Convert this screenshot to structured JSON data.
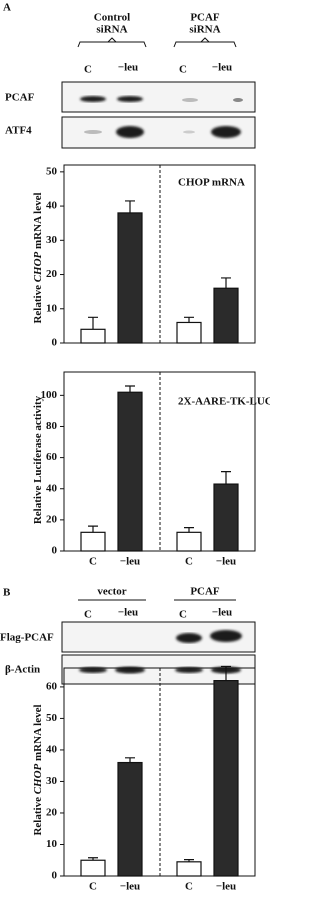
{
  "panel_a": {
    "label": "A",
    "groups": [
      [
        "Control",
        "siRNA"
      ],
      [
        "PCAF",
        "siRNA"
      ]
    ],
    "lanes": [
      "C",
      "−leu",
      "C",
      "−leu"
    ],
    "blots": [
      "PCAF",
      "ATF4"
    ]
  },
  "panel_b": {
    "label": "B",
    "groups": [
      "vector",
      "PCAF"
    ],
    "lanes": [
      "C",
      "−leu",
      "C",
      "−leu"
    ],
    "blots": [
      "Flag-PCAF",
      "β-Actin"
    ]
  },
  "chart_data": [
    {
      "type": "bar",
      "y_label": [
        "Relative ",
        "CHOP",
        " mRNA level"
      ],
      "annotation": "CHOP mRNA",
      "categories": [
        null,
        null,
        null,
        null
      ],
      "values": [
        4,
        38,
        6,
        16
      ],
      "errors": [
        3.5,
        3.5,
        1.5,
        3
      ],
      "colors": [
        "#ffffff",
        "#2b2b2b",
        "#ffffff",
        "#2b2b2b"
      ],
      "ylim": [
        0,
        52
      ],
      "yticks": [
        0,
        10,
        20,
        30,
        40,
        50
      ]
    },
    {
      "type": "bar",
      "y_label": [
        "Relative Luciferase activity"
      ],
      "annotation": "2X-AARE-TK-LUC",
      "categories": [
        "C",
        "−leu",
        "C",
        "−leu"
      ],
      "values": [
        12,
        102,
        12,
        43
      ],
      "errors": [
        4,
        4,
        3,
        8
      ],
      "colors": [
        "#ffffff",
        "#2b2b2b",
        "#ffffff",
        "#2b2b2b"
      ],
      "ylim": [
        0,
        115
      ],
      "yticks": [
        0,
        20,
        40,
        60,
        80,
        100
      ]
    },
    {
      "type": "bar",
      "y_label": [
        "Relative ",
        "CHOP",
        " mRNA level"
      ],
      "categories": [
        "C",
        "−leu",
        "C",
        "−leu"
      ],
      "values": [
        5,
        36,
        4.5,
        62
      ],
      "errors": [
        0.8,
        1.5,
        0.7,
        4.5
      ],
      "colors": [
        "#ffffff",
        "#2b2b2b",
        "#ffffff",
        "#2b2b2b"
      ],
      "ylim": [
        0,
        66
      ],
      "yticks": [
        0,
        10,
        20,
        30,
        40,
        50,
        60
      ]
    }
  ]
}
